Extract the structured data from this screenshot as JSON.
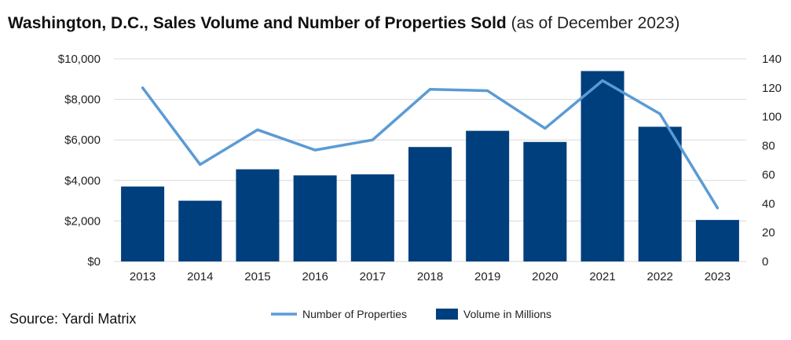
{
  "title": "Washington, D.C., Sales Volume and Number of Properties Sold",
  "subtitle": "(as of December 2023)",
  "source": "Source: Yardi Matrix",
  "colors": {
    "bar": "#003f7d",
    "line": "#5b9bd5",
    "grid": "#d9d9d9"
  },
  "chart_data": {
    "type": "bar",
    "categories": [
      "2013",
      "2014",
      "2015",
      "2016",
      "2017",
      "2018",
      "2019",
      "2020",
      "2021",
      "2022",
      "2023"
    ],
    "series": [
      {
        "name": "Volume in Millions",
        "type": "bar",
        "axis": "left",
        "values": [
          3700,
          3000,
          4550,
          4250,
          4300,
          5650,
          6450,
          5900,
          9400,
          6650,
          2050
        ]
      },
      {
        "name": "Number of Properties",
        "type": "line",
        "axis": "right",
        "values": [
          120,
          67,
          91,
          77,
          84,
          119,
          118,
          92,
          125,
          102,
          37
        ]
      }
    ],
    "y_left": {
      "ticks": [
        "$0",
        "$2,000",
        "$4,000",
        "$6,000",
        "$8,000",
        "$10,000"
      ],
      "ylim": [
        0,
        10000
      ]
    },
    "y_right": {
      "ticks": [
        "0",
        "20",
        "40",
        "60",
        "80",
        "100",
        "120",
        "140"
      ],
      "ylim": [
        0,
        140
      ]
    },
    "grid": true,
    "legend_position": "bottom"
  }
}
